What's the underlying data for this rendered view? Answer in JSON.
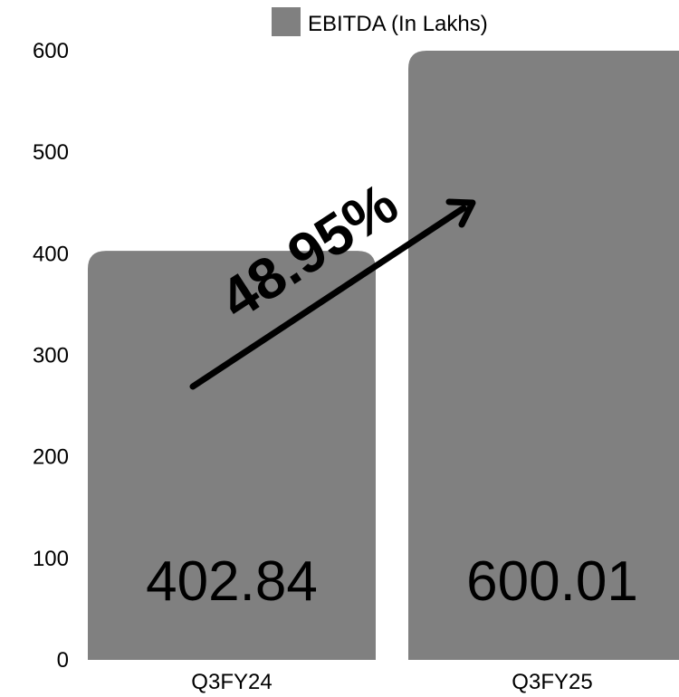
{
  "chart_data": {
    "type": "bar",
    "categories": [
      "Q3FY24",
      "Q3FY25"
    ],
    "series": [
      {
        "name": "EBITDA (In Lakhs)",
        "values": [
          402.84,
          600.01
        ],
        "data_labels": [
          "402.84",
          "600.01"
        ]
      }
    ],
    "ylim": [
      0,
      600
    ],
    "yticks": [
      0,
      100,
      200,
      300,
      400,
      500,
      600
    ],
    "grid": false,
    "legend": {
      "position": "top",
      "label": "EBITDA (In Lakhs)"
    },
    "annotation": {
      "text": "48.95%",
      "kind": "growth-arrow"
    },
    "colors": {
      "bar": "#808080",
      "text": "#000000",
      "arrow": "#000000"
    }
  }
}
